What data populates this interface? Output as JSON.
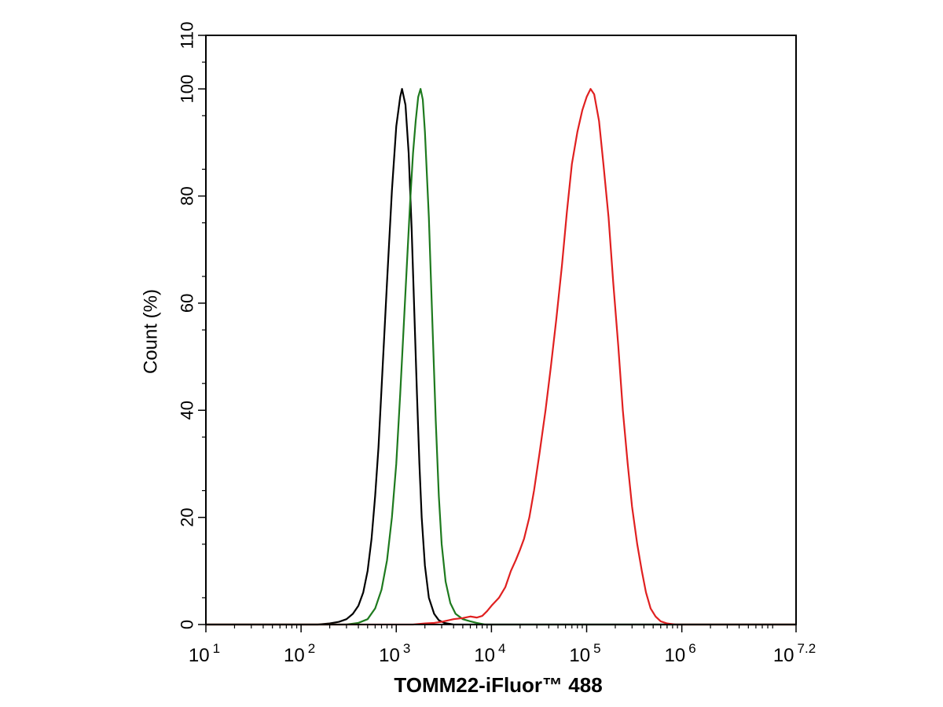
{
  "chart_data": {
    "type": "line",
    "title": "",
    "xlabel": "TOMM22-iFluor™ 488",
    "ylabel": "Count  (%)",
    "x_scale": "log",
    "xlim": [
      10,
      15848931.92
    ],
    "ylim": [
      0,
      110
    ],
    "x_ticks": [
      {
        "value": 10,
        "base": "10",
        "exp": "1"
      },
      {
        "value": 100,
        "base": "10",
        "exp": "2"
      },
      {
        "value": 1000,
        "base": "10",
        "exp": "3"
      },
      {
        "value": 10000,
        "base": "10",
        "exp": "4"
      },
      {
        "value": 100000,
        "base": "10",
        "exp": "5"
      },
      {
        "value": 1000000,
        "base": "10",
        "exp": "6"
      },
      {
        "value": 15848931.92,
        "base": "10",
        "exp": "7.2"
      }
    ],
    "y_ticks": [
      {
        "value": 0,
        "label": "0"
      },
      {
        "value": 20,
        "label": "20"
      },
      {
        "value": 40,
        "label": "40"
      },
      {
        "value": 60,
        "label": "60"
      },
      {
        "value": 80,
        "label": "80"
      },
      {
        "value": 100,
        "label": "100"
      },
      {
        "value": 110,
        "label": "110"
      }
    ],
    "grid": false,
    "legend": "none",
    "series": [
      {
        "color": "#000000",
        "points": [
          [
            10,
            0
          ],
          [
            150,
            0
          ],
          [
            200,
            0.2
          ],
          [
            250,
            0.5
          ],
          [
            300,
            1
          ],
          [
            350,
            2
          ],
          [
            400,
            3.5
          ],
          [
            450,
            6
          ],
          [
            500,
            10
          ],
          [
            550,
            16
          ],
          [
            600,
            24
          ],
          [
            650,
            33
          ],
          [
            700,
            44
          ],
          [
            800,
            64
          ],
          [
            900,
            81
          ],
          [
            1000,
            93
          ],
          [
            1100,
            98.5
          ],
          [
            1150,
            100
          ],
          [
            1250,
            97
          ],
          [
            1350,
            88
          ],
          [
            1450,
            74
          ],
          [
            1550,
            58
          ],
          [
            1650,
            43
          ],
          [
            1750,
            30
          ],
          [
            1850,
            20
          ],
          [
            2000,
            11
          ],
          [
            2200,
            5
          ],
          [
            2500,
            2
          ],
          [
            2800,
            0.8
          ],
          [
            3200,
            0.3
          ],
          [
            4000,
            0
          ],
          [
            15848931.92,
            0
          ]
        ]
      },
      {
        "color": "#1e7a1e",
        "points": [
          [
            10,
            0
          ],
          [
            300,
            0
          ],
          [
            400,
            0.3
          ],
          [
            500,
            1
          ],
          [
            600,
            3
          ],
          [
            700,
            6.5
          ],
          [
            800,
            12
          ],
          [
            900,
            20
          ],
          [
            1000,
            30
          ],
          [
            1100,
            43
          ],
          [
            1200,
            56
          ],
          [
            1300,
            68
          ],
          [
            1400,
            79
          ],
          [
            1500,
            88
          ],
          [
            1600,
            94
          ],
          [
            1700,
            98.5
          ],
          [
            1800,
            100
          ],
          [
            1900,
            98
          ],
          [
            2000,
            92
          ],
          [
            2200,
            76
          ],
          [
            2400,
            56
          ],
          [
            2600,
            38
          ],
          [
            2800,
            24
          ],
          [
            3000,
            15
          ],
          [
            3300,
            8
          ],
          [
            3700,
            4
          ],
          [
            4200,
            2
          ],
          [
            5000,
            1
          ],
          [
            6000,
            0.6
          ],
          [
            7000,
            0.3
          ],
          [
            8500,
            0
          ],
          [
            15848931.92,
            0
          ]
        ]
      },
      {
        "color": "#e02020",
        "points": [
          [
            10,
            0
          ],
          [
            1500,
            0
          ],
          [
            2000,
            0.2
          ],
          [
            2500,
            0.3
          ],
          [
            3000,
            0.5
          ],
          [
            4000,
            1
          ],
          [
            5000,
            1.2
          ],
          [
            6000,
            1.5
          ],
          [
            7000,
            1.3
          ],
          [
            8000,
            1.6
          ],
          [
            9000,
            2.5
          ],
          [
            10000,
            3.5
          ],
          [
            12000,
            5
          ],
          [
            14000,
            7
          ],
          [
            16000,
            10
          ],
          [
            18000,
            12
          ],
          [
            20000,
            14
          ],
          [
            22000,
            16
          ],
          [
            25000,
            20
          ],
          [
            28000,
            25
          ],
          [
            32000,
            32
          ],
          [
            37000,
            40
          ],
          [
            42000,
            48
          ],
          [
            48000,
            57
          ],
          [
            55000,
            67
          ],
          [
            62000,
            77
          ],
          [
            70000,
            86
          ],
          [
            80000,
            92
          ],
          [
            90000,
            96
          ],
          [
            100000,
            98.5
          ],
          [
            110000,
            100
          ],
          [
            120000,
            99
          ],
          [
            135000,
            94
          ],
          [
            150000,
            86
          ],
          [
            170000,
            76
          ],
          [
            190000,
            64
          ],
          [
            215000,
            52
          ],
          [
            240000,
            40
          ],
          [
            270000,
            30
          ],
          [
            300000,
            22
          ],
          [
            340000,
            15
          ],
          [
            380000,
            10
          ],
          [
            420000,
            6
          ],
          [
            470000,
            3
          ],
          [
            530000,
            1.5
          ],
          [
            600000,
            0.6
          ],
          [
            700000,
            0.2
          ],
          [
            850000,
            0
          ],
          [
            15848931.92,
            0
          ]
        ]
      }
    ]
  }
}
